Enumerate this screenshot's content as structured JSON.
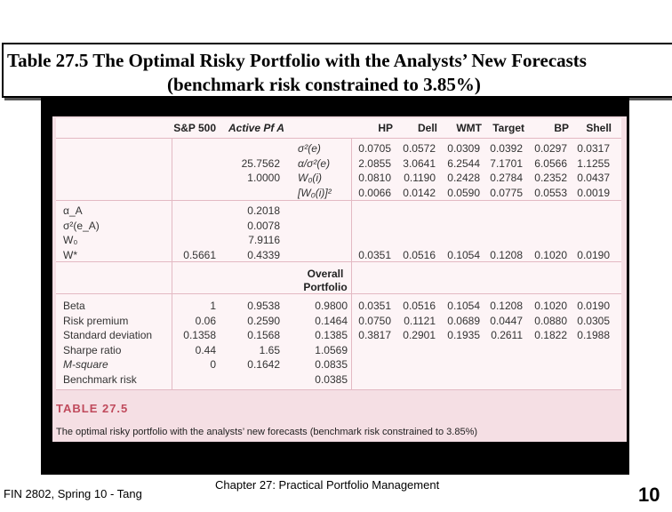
{
  "slide": {
    "title_line1": "Table 27.5 The Optimal Risky Portfolio with the Analysts’ New Forecasts",
    "title_line2": "(benchmark risk constrained to 3.85%)",
    "footer_left": "FIN 2802, Spring 10 - Tang",
    "footer_center": "Chapter 27: Practical Portfolio Management",
    "page_number": "10"
  },
  "table": {
    "headers": {
      "sp500": "S&P 500",
      "active": "Active Pf A",
      "hp": "HP",
      "dell": "Dell",
      "wmt": "WMT",
      "target": "Target",
      "bp": "BP",
      "shell": "Shell"
    },
    "top_rows": [
      {
        "sp500": "",
        "active": "",
        "label": "σ²(e)",
        "values": [
          "0.0705",
          "0.0572",
          "0.0309",
          "0.0392",
          "0.0297",
          "0.0317"
        ]
      },
      {
        "sp500": "",
        "active": "25.7562",
        "label": "α/σ²(e)",
        "values": [
          "2.0855",
          "3.0641",
          "6.2544",
          "7.1701",
          "6.0566",
          "1.1255"
        ]
      },
      {
        "sp500": "",
        "active": "1.0000",
        "label": "W₀(i)",
        "values": [
          "0.0810",
          "0.1190",
          "0.2428",
          "0.2784",
          "0.2352",
          "0.0437"
        ]
      },
      {
        "sp500": "",
        "active": "",
        "label": "[W₀(i)]²",
        "values": [
          "0.0066",
          "0.0142",
          "0.0590",
          "0.0775",
          "0.0553",
          "0.0019"
        ]
      }
    ],
    "mid_rows": [
      {
        "label": "α_A",
        "sp500": "",
        "active": "0.2018",
        "values": [
          "",
          "",
          "",
          "",
          "",
          ""
        ]
      },
      {
        "label": "σ²(e_A)",
        "sp500": "",
        "active": "0.0078",
        "values": [
          "",
          "",
          "",
          "",
          "",
          ""
        ]
      },
      {
        "label": "W₀",
        "sp500": "",
        "active": "7.9116",
        "values": [
          "",
          "",
          "",
          "",
          "",
          ""
        ]
      },
      {
        "label": "W*",
        "sp500": "0.5661",
        "active": "0.4339",
        "values": [
          "0.0351",
          "0.0516",
          "0.1054",
          "0.1208",
          "0.1020",
          "0.0190"
        ]
      }
    ],
    "overall_header_line1": "Overall",
    "overall_header_line2": "Portfolio",
    "bottom_rows": [
      {
        "label": "Beta",
        "sp500": "1",
        "active": "0.9538",
        "overall": "0.9800",
        "values": [
          "0.0351",
          "0.0516",
          "0.1054",
          "0.1208",
          "0.1020",
          "0.0190"
        ]
      },
      {
        "label": "Risk premium",
        "sp500": "0.06",
        "active": "0.2590",
        "overall": "0.1464",
        "values": [
          "0.0750",
          "0.1121",
          "0.0689",
          "0.0447",
          "0.0880",
          "0.0305"
        ]
      },
      {
        "label": "Standard deviation",
        "sp500": "0.1358",
        "active": "0.1568",
        "overall": "0.1385",
        "values": [
          "0.3817",
          "0.2901",
          "0.1935",
          "0.2611",
          "0.1822",
          "0.1988"
        ]
      },
      {
        "label": "Sharpe ratio",
        "sp500": "0.44",
        "active": "1.65",
        "overall": "1.0569",
        "values": [
          "",
          "",
          "",
          "",
          "",
          ""
        ]
      },
      {
        "label": "M-square",
        "sp500": "0",
        "active": "0.1642",
        "overall": "0.0835",
        "values": [
          "",
          "",
          "",
          "",
          "",
          ""
        ]
      },
      {
        "label": "Benchmark risk",
        "sp500": "",
        "active": "",
        "overall": "0.0385",
        "values": [
          "",
          "",
          "",
          "",
          "",
          ""
        ]
      }
    ],
    "caption_title": "TABLE 27.5",
    "caption_text": "The optimal risky portfolio with the analysts’ new forecasts (benchmark risk constrained to 3.85%)"
  },
  "colors": {
    "panel_bg": "#f5dfe4",
    "table_bg": "#fdf4f6",
    "caption_accent": "#c04a5c",
    "rule": "#e3b9c3"
  }
}
